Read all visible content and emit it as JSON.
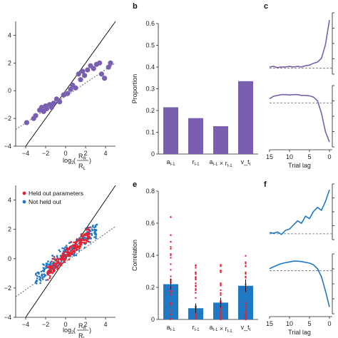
{
  "panels": {
    "b": "b",
    "c": "c",
    "e": "e",
    "f": "f"
  },
  "colors": {
    "purple": "#7a5fb0",
    "red": "#e8212e",
    "blue": "#1f78c4",
    "diag": "#111111",
    "dashed": "#666666"
  },
  "chart_data": [
    {
      "id": "a_scatter",
      "type": "scatter",
      "ylim": [
        -4,
        5
      ],
      "xlim": [
        -5,
        5
      ],
      "x_ticks": [
        "−4",
        "−2",
        "0",
        "2",
        "4"
      ],
      "y_ticks": [
        "4",
        "2",
        "0",
        "−2",
        "−4"
      ],
      "xlabel": "log2(RR/RL)",
      "series": [
        {
          "points": [
            [
              -3.9,
              -2.3
            ],
            [
              -3.2,
              -2.0
            ],
            [
              -3.0,
              -1.8
            ],
            [
              -2.6,
              -1.4
            ],
            [
              -2.4,
              -1.2
            ],
            [
              -2.2,
              -1.5
            ],
            [
              -2.0,
              -1.1
            ],
            [
              -1.9,
              -1.3
            ],
            [
              -1.6,
              -1.0
            ],
            [
              -1.4,
              -1.2
            ],
            [
              -1.2,
              -0.9
            ],
            [
              -0.9,
              -0.6
            ],
            [
              -0.6,
              -0.8
            ],
            [
              -0.2,
              -0.3
            ],
            [
              0.2,
              -0.2
            ],
            [
              0.5,
              0.1
            ],
            [
              0.7,
              0.4
            ],
            [
              1.0,
              0.2
            ],
            [
              1.3,
              1.2
            ],
            [
              1.5,
              0.8
            ],
            [
              1.7,
              1.4
            ],
            [
              1.9,
              1.1
            ],
            [
              2.2,
              1.5
            ],
            [
              2.5,
              1.8
            ],
            [
              2.8,
              1.6
            ],
            [
              3.1,
              1.9
            ],
            [
              3.4,
              2.0
            ],
            [
              3.6,
              1.2
            ],
            [
              3.9,
              0.9
            ],
            [
              4.3,
              1.7
            ],
            [
              4.5,
              2.0
            ]
          ]
        }
      ],
      "fit": [
        [
          -5,
          -2.8
        ],
        [
          5,
          2.0
        ]
      ]
    },
    {
      "id": "b_bar",
      "type": "bar",
      "ylabel": "Proportion",
      "ylim": [
        0,
        0.6
      ],
      "y_ticks": [
        "0.6",
        "0.5",
        "0.4",
        "0.3",
        "0.2",
        "0.1",
        "0"
      ],
      "categories": [
        "a_{t-1}",
        "r_{t-1}",
        "a_{t-1} × r_{t-1}",
        "v_t"
      ],
      "values": [
        0.215,
        0.165,
        0.128,
        0.335
      ]
    },
    {
      "id": "c_top",
      "type": "line",
      "x": [
        15,
        14,
        13,
        12,
        11,
        10,
        9,
        8,
        7,
        6,
        5,
        4,
        3,
        2,
        1,
        0
      ],
      "y": [
        0.02,
        0.03,
        0.01,
        0.02,
        0.02,
        0.03,
        0.02,
        0.03,
        0.02,
        0.04,
        0.05,
        0.08,
        0.1,
        0.16,
        0.38,
        0.78
      ]
    },
    {
      "id": "c_bottom",
      "type": "line",
      "x_ticks": [
        "15",
        "10",
        "5",
        "0"
      ],
      "xlabel": "Trial lag",
      "x": [
        15,
        14,
        13,
        12,
        11,
        10,
        9,
        8,
        7,
        6,
        5,
        4,
        3,
        2,
        1,
        0
      ],
      "y": [
        0.1,
        0.16,
        0.18,
        0.2,
        0.2,
        0.19,
        0.2,
        0.2,
        0.18,
        0.18,
        0.17,
        0.14,
        0.05,
        -0.25,
        -0.7,
        -0.95
      ]
    },
    {
      "id": "d_scatter",
      "type": "scatter",
      "ylim": [
        -4,
        5
      ],
      "xlim": [
        -5,
        5
      ],
      "x_ticks": [
        "−4",
        "−2",
        "0",
        "2",
        "4"
      ],
      "y_ticks": [
        "4",
        "2",
        "0",
        "−2",
        "−4"
      ],
      "xlabel": "log2(RR/RL)",
      "legend": [
        "Held out parameters",
        "Not held out"
      ],
      "fit": [
        [
          -5,
          -2.6
        ],
        [
          5,
          2.2
        ]
      ]
    },
    {
      "id": "e_bar",
      "type": "bar",
      "ylabel": "Correlation",
      "ylim": [
        0,
        0.8
      ],
      "y_ticks": [
        "0.8",
        "0.6",
        "0.4",
        "0.2",
        "0"
      ],
      "categories": [
        "a_{t-1}",
        "r_{t-1}",
        "a_{t-1} × r_{t-1}",
        "v_t"
      ],
      "values": [
        0.22,
        0.07,
        0.105,
        0.21
      ],
      "errors": [
        0.035,
        0.03,
        0.03,
        0.04
      ]
    },
    {
      "id": "f_top",
      "type": "line",
      "x": [
        15,
        14,
        13,
        12,
        11,
        10,
        9,
        8,
        7,
        6,
        5,
        4,
        3,
        2,
        1,
        0
      ],
      "y": [
        0.02,
        0.01,
        0.03,
        -0.01,
        0.06,
        0.08,
        0.15,
        0.22,
        0.18,
        0.3,
        0.26,
        0.38,
        0.45,
        0.4,
        0.55,
        0.75
      ]
    },
    {
      "id": "f_bottom",
      "type": "line",
      "x_ticks": [
        "15",
        "10",
        "5",
        "0"
      ],
      "xlabel": "Trial lag",
      "x": [
        15,
        14,
        13,
        12,
        11,
        10,
        9,
        8,
        7,
        6,
        5,
        4,
        3,
        2,
        1,
        0
      ],
      "y": [
        0.05,
        0.1,
        0.14,
        0.18,
        0.2,
        0.22,
        0.24,
        0.24,
        0.23,
        0.21,
        0.19,
        0.15,
        0.05,
        -0.15,
        -0.5,
        -0.9
      ]
    }
  ]
}
